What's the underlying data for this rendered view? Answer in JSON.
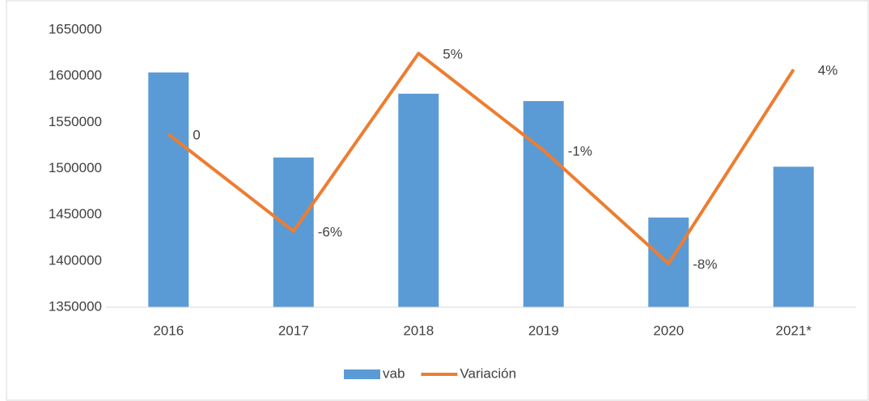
{
  "chart_data": {
    "type": "bar_line",
    "categories": [
      "2016",
      "2017",
      "2018",
      "2019",
      "2020",
      "2021*"
    ],
    "series": [
      {
        "name": "vab",
        "type": "bar",
        "color": "#5b9bd5",
        "values": [
          1604000,
          1512000,
          1581000,
          1573000,
          1447000,
          1502000
        ]
      },
      {
        "name": "Variación",
        "type": "line",
        "axis": "y2",
        "color": "#ed7d31",
        "values": [
          0,
          -6,
          5,
          -1,
          -8,
          4
        ],
        "value_labels": [
          "0",
          "-6%",
          "5%",
          "-1%",
          "-8%",
          "4%"
        ]
      }
    ],
    "ylim": [
      1350000,
      1650000
    ],
    "yticks": [
      1350000,
      1400000,
      1450000,
      1500000,
      1550000,
      1600000,
      1650000
    ],
    "y2lim": [
      -10.7,
      6.45
    ],
    "legend": "bottom",
    "grid": false
  }
}
